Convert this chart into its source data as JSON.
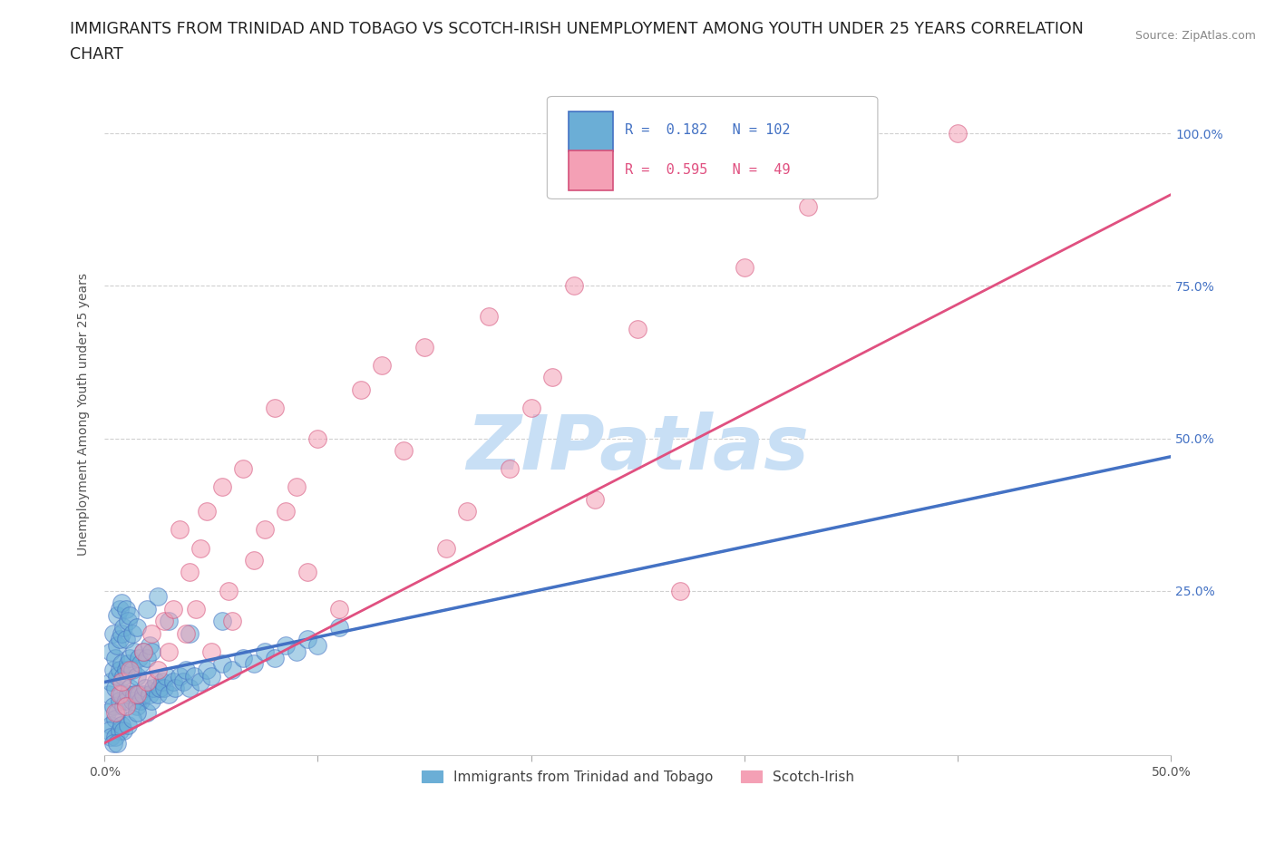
{
  "title_line1": "IMMIGRANTS FROM TRINIDAD AND TOBAGO VS SCOTCH-IRISH UNEMPLOYMENT AMONG YOUTH UNDER 25 YEARS CORRELATION",
  "title_line2": "CHART",
  "source_text": "Source: ZipAtlas.com",
  "ylabel": "Unemployment Among Youth under 25 years",
  "xlim": [
    0.0,
    0.5
  ],
  "ylim": [
    -0.02,
    1.1
  ],
  "xtick_positions": [
    0.0,
    0.1,
    0.2,
    0.3,
    0.4,
    0.5
  ],
  "xtick_labels": [
    "0.0%",
    "",
    "",
    "",
    "",
    "50.0%"
  ],
  "ytick_positions": [
    0.25,
    0.5,
    0.75,
    1.0
  ],
  "ytick_labels_right": [
    "25.0%",
    "50.0%",
    "75.0%",
    "100.0%"
  ],
  "watermark": "ZIPatlas",
  "blue_scatter_x": [
    0.001,
    0.002,
    0.003,
    0.003,
    0.003,
    0.004,
    0.004,
    0.004,
    0.005,
    0.005,
    0.005,
    0.006,
    0.006,
    0.006,
    0.006,
    0.007,
    0.007,
    0.007,
    0.007,
    0.008,
    0.008,
    0.008,
    0.008,
    0.009,
    0.009,
    0.009,
    0.01,
    0.01,
    0.01,
    0.01,
    0.011,
    0.011,
    0.011,
    0.012,
    0.012,
    0.012,
    0.013,
    0.013,
    0.013,
    0.014,
    0.014,
    0.015,
    0.015,
    0.015,
    0.016,
    0.016,
    0.017,
    0.017,
    0.018,
    0.018,
    0.019,
    0.02,
    0.02,
    0.021,
    0.021,
    0.022,
    0.022,
    0.023,
    0.024,
    0.025,
    0.026,
    0.027,
    0.028,
    0.029,
    0.03,
    0.032,
    0.033,
    0.035,
    0.037,
    0.038,
    0.04,
    0.042,
    0.045,
    0.048,
    0.05,
    0.055,
    0.06,
    0.065,
    0.07,
    0.075,
    0.08,
    0.085,
    0.09,
    0.095,
    0.1,
    0.11,
    0.02,
    0.025,
    0.03,
    0.002,
    0.003,
    0.005,
    0.007,
    0.008,
    0.009,
    0.011,
    0.013,
    0.015,
    0.004,
    0.006,
    0.04,
    0.055
  ],
  "blue_scatter_y": [
    0.05,
    0.08,
    0.03,
    0.1,
    0.15,
    0.06,
    0.12,
    0.18,
    0.04,
    0.09,
    0.14,
    0.05,
    0.11,
    0.16,
    0.21,
    0.07,
    0.12,
    0.17,
    0.22,
    0.08,
    0.13,
    0.18,
    0.23,
    0.06,
    0.11,
    0.19,
    0.07,
    0.12,
    0.17,
    0.22,
    0.08,
    0.13,
    0.2,
    0.09,
    0.14,
    0.21,
    0.07,
    0.12,
    0.18,
    0.08,
    0.15,
    0.06,
    0.11,
    0.19,
    0.08,
    0.14,
    0.07,
    0.13,
    0.08,
    0.15,
    0.09,
    0.05,
    0.14,
    0.08,
    0.16,
    0.07,
    0.15,
    0.09,
    0.1,
    0.08,
    0.09,
    0.1,
    0.09,
    0.11,
    0.08,
    0.1,
    0.09,
    0.11,
    0.1,
    0.12,
    0.09,
    0.11,
    0.1,
    0.12,
    0.11,
    0.13,
    0.12,
    0.14,
    0.13,
    0.15,
    0.14,
    0.16,
    0.15,
    0.17,
    0.16,
    0.19,
    0.22,
    0.24,
    0.2,
    0.02,
    0.01,
    0.01,
    0.02,
    0.03,
    0.02,
    0.03,
    0.04,
    0.05,
    0.0,
    0.0,
    0.18,
    0.2
  ],
  "pink_scatter_x": [
    0.005,
    0.007,
    0.008,
    0.01,
    0.012,
    0.015,
    0.018,
    0.02,
    0.022,
    0.025,
    0.028,
    0.03,
    0.032,
    0.035,
    0.038,
    0.04,
    0.043,
    0.045,
    0.048,
    0.05,
    0.055,
    0.058,
    0.06,
    0.065,
    0.07,
    0.075,
    0.08,
    0.085,
    0.09,
    0.095,
    0.1,
    0.11,
    0.12,
    0.13,
    0.14,
    0.15,
    0.16,
    0.17,
    0.18,
    0.19,
    0.2,
    0.21,
    0.22,
    0.23,
    0.25,
    0.27,
    0.3,
    0.33,
    0.4
  ],
  "pink_scatter_y": [
    0.05,
    0.08,
    0.1,
    0.06,
    0.12,
    0.08,
    0.15,
    0.1,
    0.18,
    0.12,
    0.2,
    0.15,
    0.22,
    0.35,
    0.18,
    0.28,
    0.22,
    0.32,
    0.38,
    0.15,
    0.42,
    0.25,
    0.2,
    0.45,
    0.3,
    0.35,
    0.55,
    0.38,
    0.42,
    0.28,
    0.5,
    0.22,
    0.58,
    0.62,
    0.48,
    0.65,
    0.32,
    0.38,
    0.7,
    0.45,
    0.55,
    0.6,
    0.75,
    0.4,
    0.68,
    0.25,
    0.78,
    0.88,
    1.0
  ],
  "blue_line_x": [
    0.0,
    0.5
  ],
  "blue_line_y": [
    0.1,
    0.47
  ],
  "pink_line_x": [
    0.0,
    0.5
  ],
  "pink_line_y": [
    0.0,
    0.9
  ],
  "blue_scatter_color": "#6baed6",
  "blue_edge_color": "#4472c4",
  "pink_scatter_color": "#f4a0b5",
  "pink_edge_color": "#d4507a",
  "blue_line_color": "#4472c4",
  "pink_line_color": "#e05080",
  "background_color": "#ffffff",
  "grid_color": "#d0d0d0",
  "title_fontsize": 12.5,
  "axis_label_fontsize": 10,
  "tick_fontsize": 10,
  "watermark_color": "#c8dff5",
  "watermark_fontsize": 60,
  "right_tick_color": "#4472c4",
  "source_fontsize": 9
}
